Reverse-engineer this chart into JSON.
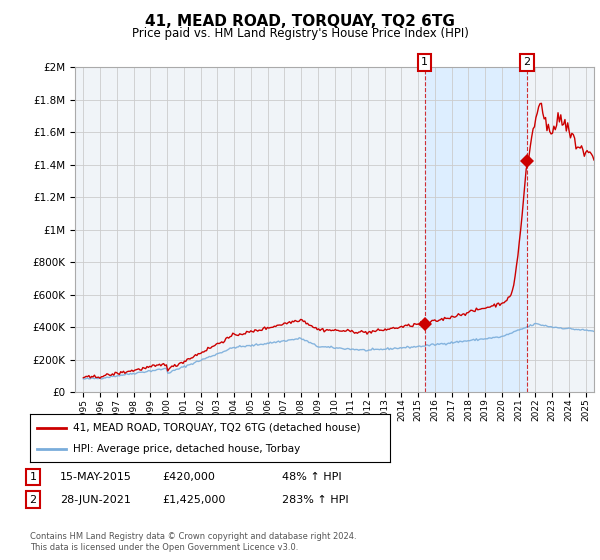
{
  "title": "41, MEAD ROAD, TORQUAY, TQ2 6TG",
  "subtitle": "Price paid vs. HM Land Registry's House Price Index (HPI)",
  "legend_line1": "41, MEAD ROAD, TORQUAY, TQ2 6TG (detached house)",
  "legend_line2": "HPI: Average price, detached house, Torbay",
  "sale1_date": "15-MAY-2015",
  "sale1_price": "£420,000",
  "sale1_hpi": "48% ↑ HPI",
  "sale1_year": 2015.38,
  "sale1_value": 420000,
  "sale2_date": "28-JUN-2021",
  "sale2_price": "£1,425,000",
  "sale2_hpi": "283% ↑ HPI",
  "sale2_year": 2021.49,
  "sale2_value": 1425000,
  "footnote": "Contains HM Land Registry data © Crown copyright and database right 2024.\nThis data is licensed under the Open Government Licence v3.0.",
  "red_color": "#cc0000",
  "blue_color": "#7aaddb",
  "shade_color": "#ddeeff",
  "ylim": [
    0,
    2000000
  ],
  "xlim": [
    1994.5,
    2025.5
  ],
  "background_color": "#ffffff",
  "plot_bg_color": "#f0f4f8",
  "grid_color": "#cccccc"
}
